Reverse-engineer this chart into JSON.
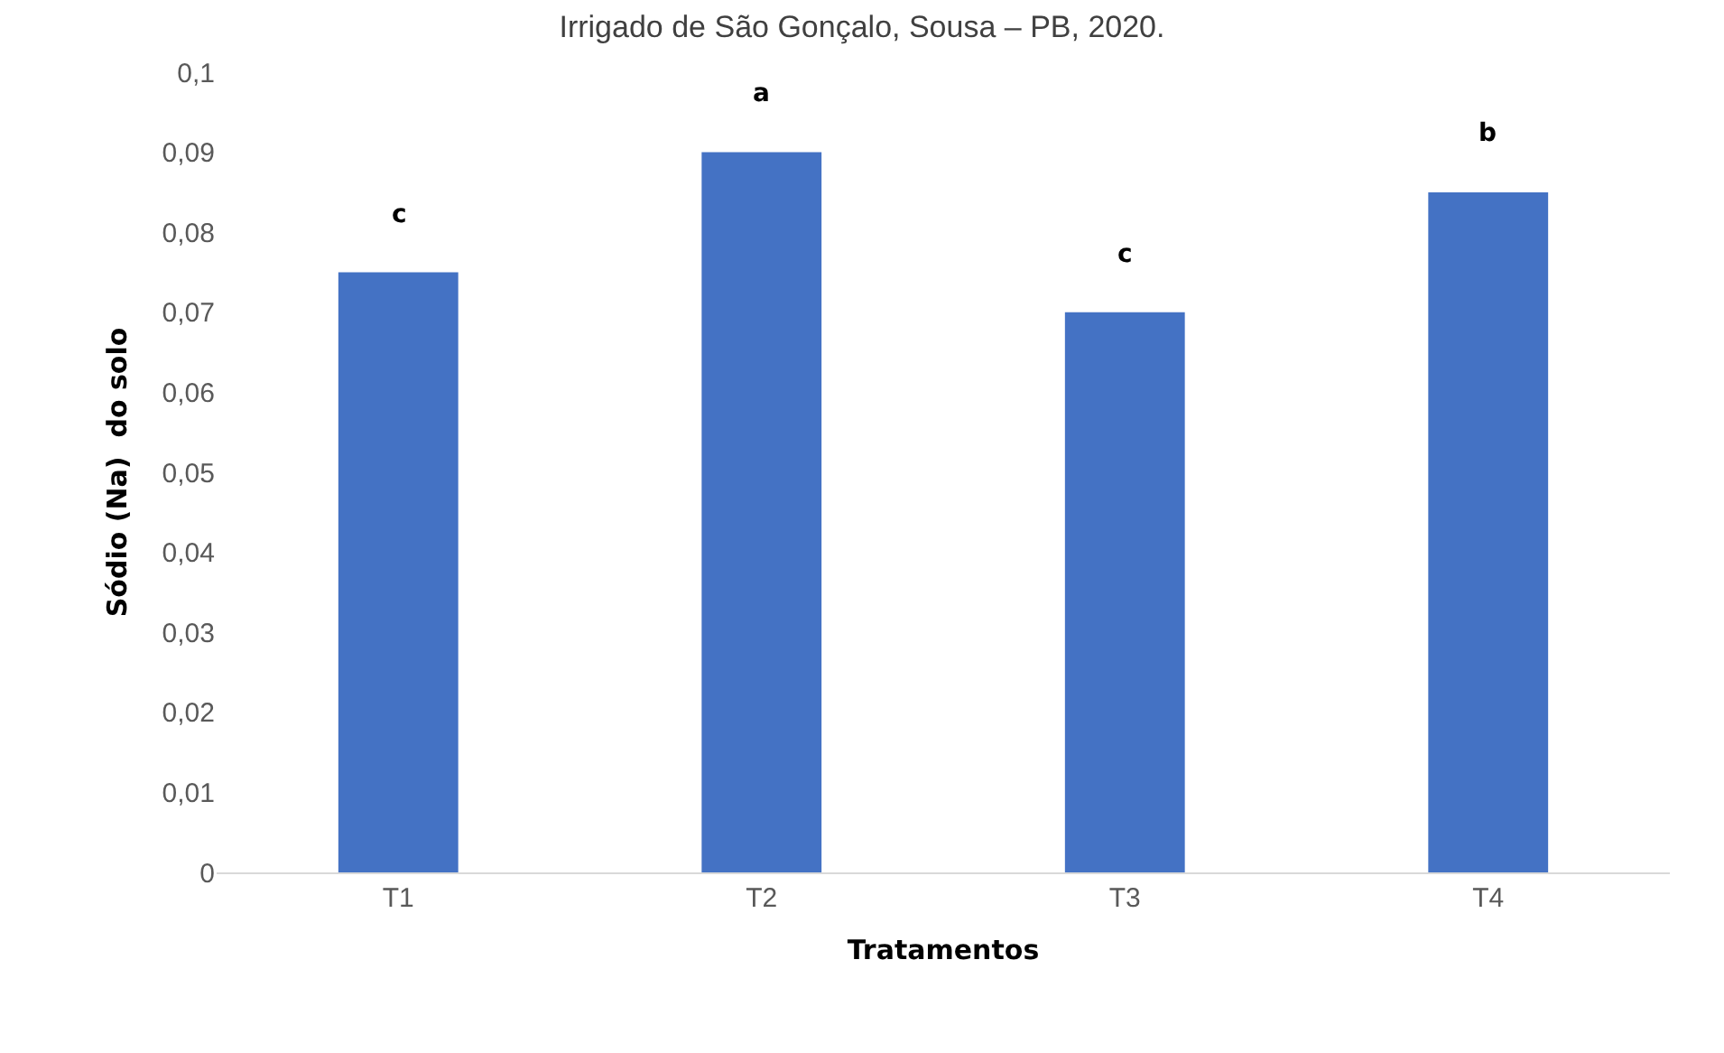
{
  "chart_data": {
    "type": "bar",
    "title": "Irrigado de São Gonçalo, Sousa – PB, 2020.",
    "xlabel": "Tratamentos",
    "ylabel": "Sódio (Na)  do solo",
    "categories": [
      "T1",
      "T2",
      "T3",
      "T4"
    ],
    "values": [
      0.075,
      0.09,
      0.07,
      0.085
    ],
    "color": "#4472c4",
    "ylim": [
      0,
      0.1
    ],
    "yticks": [
      0,
      {
        "value": 0.01,
        "label": "0,01"
      },
      {
        "value": 0.02,
        "label": "0,02"
      },
      {
        "value": 0.03,
        "label": "0,03"
      },
      {
        "value": 0.04,
        "label": "0,04"
      },
      {
        "value": 0.05,
        "label": "0,05"
      },
      {
        "value": 0.06,
        "label": "0,06"
      },
      {
        "value": 0.07,
        "label": "0,07"
      },
      {
        "value": 0.08,
        "label": "0,08"
      },
      {
        "value": 0.09,
        "label": "0,09"
      },
      {
        "value": 0.1,
        "label": "0,1"
      }
    ],
    "annotations": [
      "c",
      "a",
      "c",
      "b"
    ],
    "grid": false,
    "legend": false
  }
}
